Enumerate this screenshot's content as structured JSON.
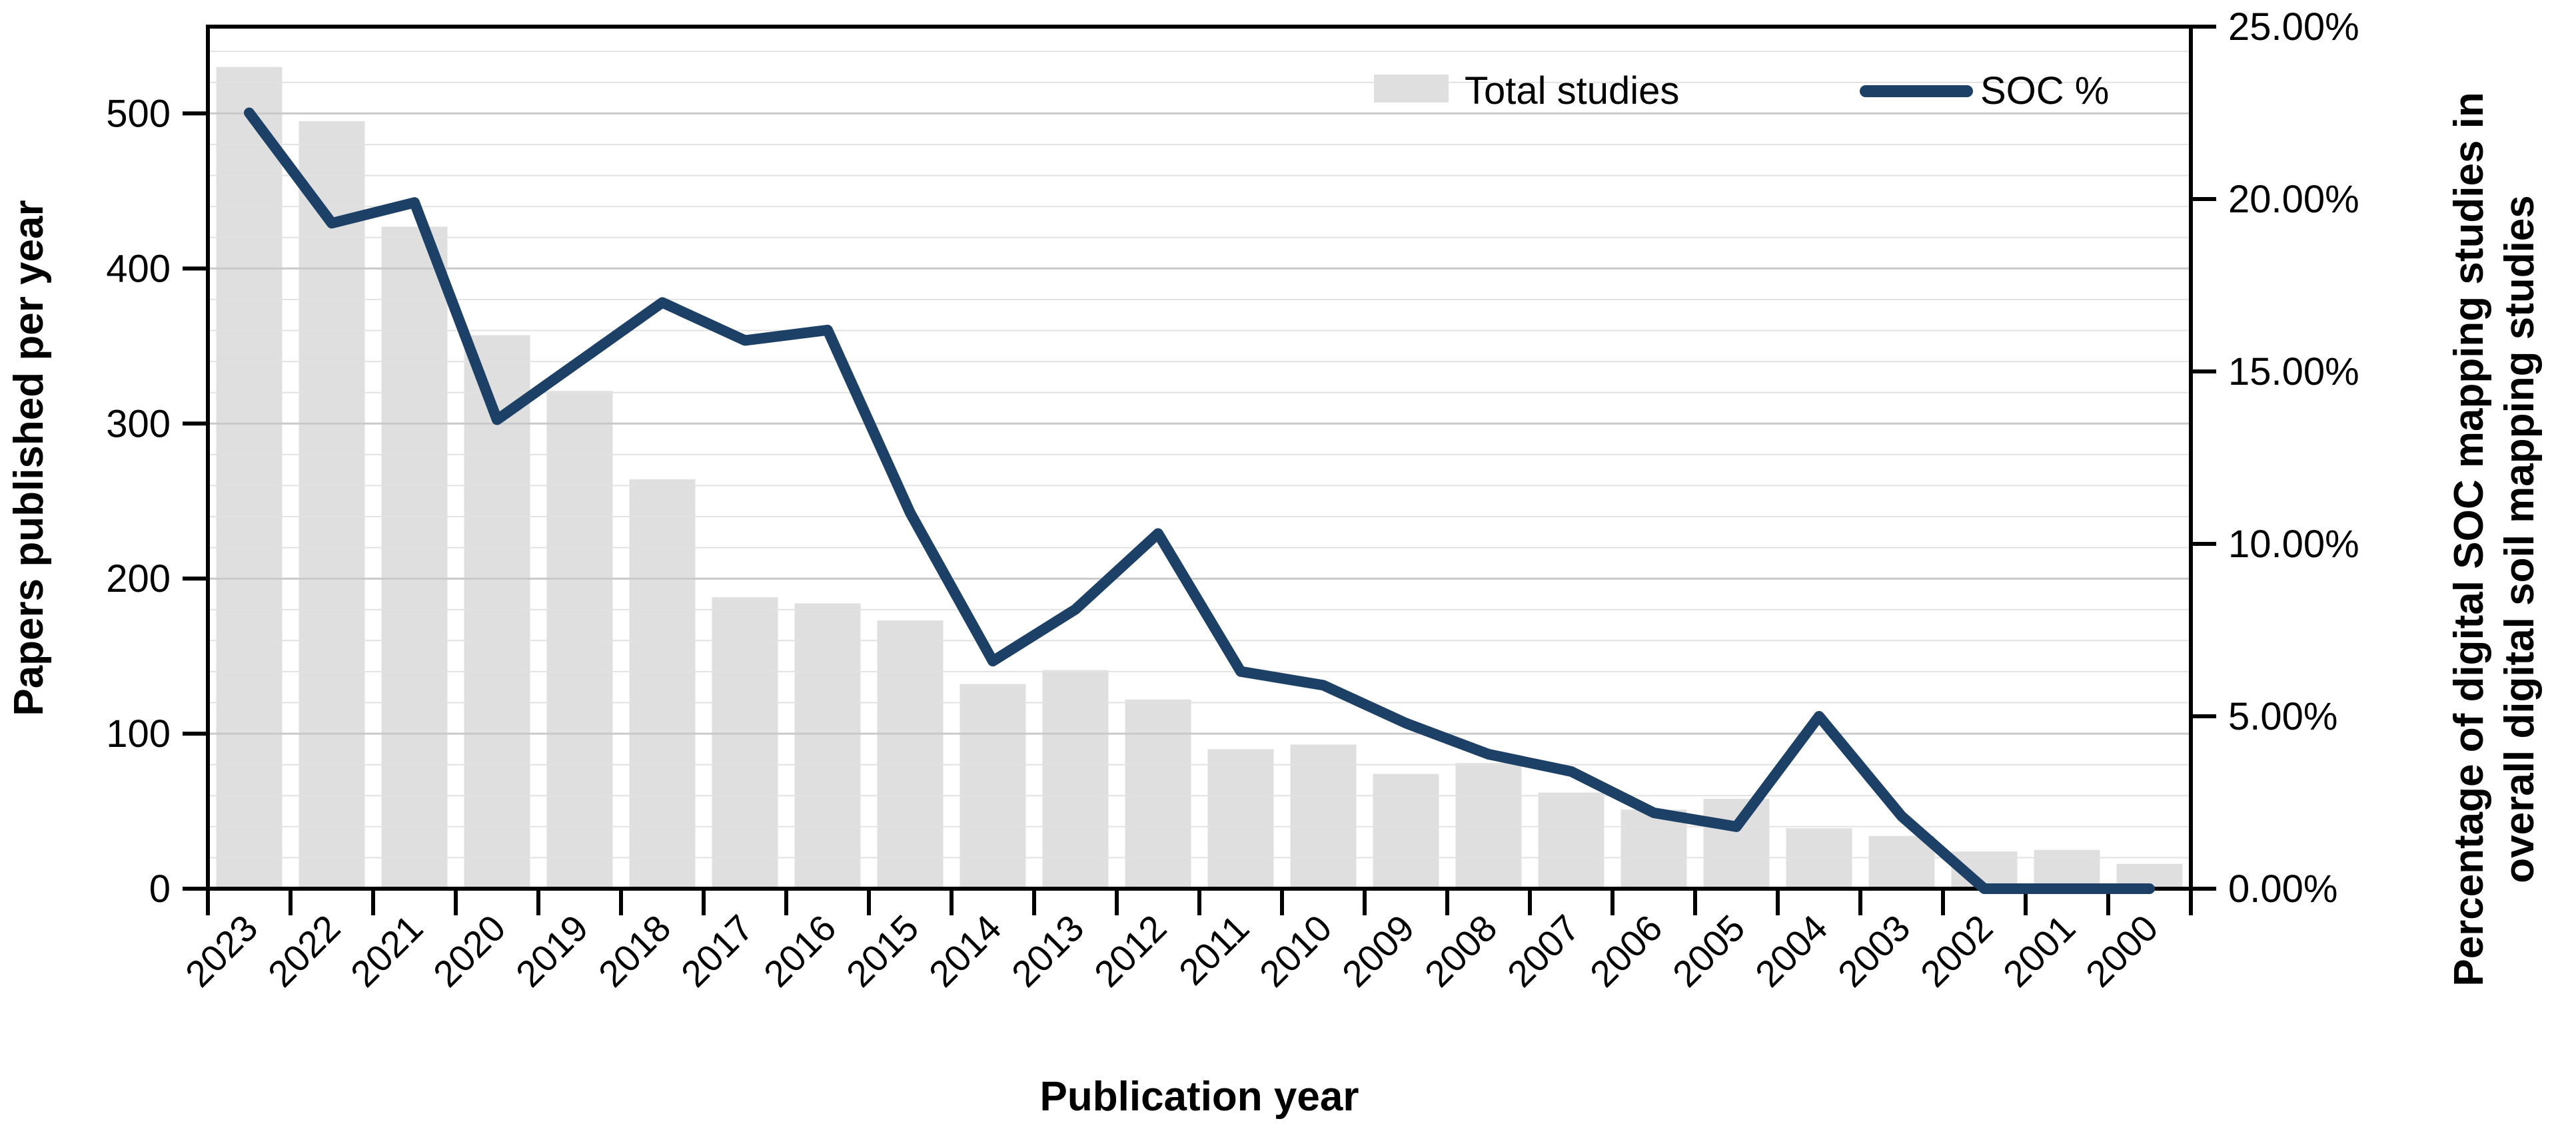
{
  "chart_data": {
    "type": "combo",
    "categories": [
      "2023",
      "2022",
      "2021",
      "2020",
      "2019",
      "2018",
      "2017",
      "2016",
      "2015",
      "2014",
      "2013",
      "2012",
      "2011",
      "2010",
      "2009",
      "2008",
      "2007",
      "2006",
      "2005",
      "2004",
      "2003",
      "2002",
      "2001",
      "2000"
    ],
    "series": [
      {
        "name": "Total studies",
        "type": "bar",
        "axis": "left",
        "color": "#dfdfdf",
        "values": [
          530,
          495,
          427,
          357,
          321,
          264,
          188,
          184,
          173,
          132,
          141,
          122,
          90,
          93,
          74,
          81,
          62,
          51,
          58,
          39,
          34,
          24,
          25,
          16
        ]
      },
      {
        "name": "SOC %",
        "type": "line",
        "axis": "right",
        "color": "#1d4066",
        "values": [
          22.5,
          19.3,
          19.9,
          13.6,
          15.3,
          17.0,
          15.9,
          16.2,
          10.9,
          6.6,
          8.1,
          10.3,
          6.3,
          5.9,
          4.8,
          3.9,
          3.4,
          2.2,
          1.8,
          5.0,
          2.1,
          0.0,
          0.0,
          0.0
        ]
      }
    ],
    "left_axis": {
      "title": "Papers published per year",
      "min": 0,
      "max": 556,
      "ticks": [
        0,
        100,
        200,
        300,
        400,
        500
      ],
      "tick_labels": [
        "0",
        "100",
        "200",
        "300",
        "400",
        "500"
      ],
      "minor_gridline_step": 20
    },
    "right_axis": {
      "title_line1": "Percentage of digital SOC mapping studies in",
      "title_line2": "overall digital soil mapping studies",
      "min": 0,
      "max": 25,
      "ticks": [
        0,
        5,
        10,
        15,
        20,
        25
      ],
      "tick_labels": [
        "0.00%",
        "5.00%",
        "10.00%",
        "15.00%",
        "20.00%",
        "25.00%"
      ]
    },
    "x_axis": {
      "title": "Publication year"
    },
    "legend": {
      "bar_label": "Total studies",
      "line_label": "SOC %"
    },
    "layout_hints": {
      "grid": "minor horizontal gridlines every 20 papers, darker at every 100",
      "legend_position": "inside top-right",
      "bar_color": "#dfdfdf",
      "line_color": "#1d4066",
      "gridline_minor_color": "#e2e2e2",
      "gridline_major_color": "#c9c9c9",
      "axis_color": "#000000"
    }
  }
}
